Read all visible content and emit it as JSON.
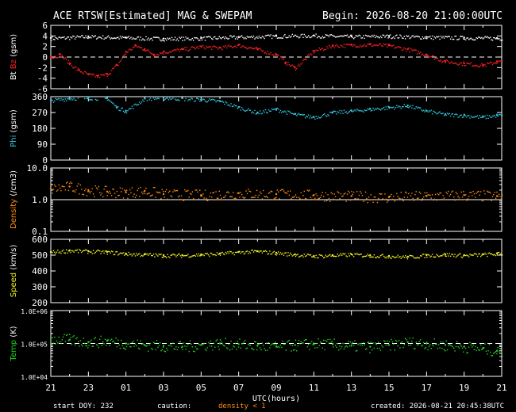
{
  "header": {
    "title": "ACE RTSW[Estimated] MAG & SWEPAM",
    "begin": "Begin: 2026-08-20 21:00:00UTC"
  },
  "footer": {
    "start_doy": "start DOY: 232",
    "caution": "caution:",
    "density_note": "density < 1",
    "created": "created: 2026-08-21 20:45:38UTC"
  },
  "colors": {
    "bt": "#ffffff",
    "bz": "#ff2020",
    "phi": "#30c8e0",
    "density": "#ff8c10",
    "speed": "#f0f020",
    "temp": "#20d820",
    "caution": "#ff8c10"
  },
  "chart_data": [
    {
      "type": "scatter",
      "panel": "mag",
      "ylabel_parts": [
        "Bt",
        "Bz",
        "(gsm)"
      ],
      "yticks": [
        "6",
        "4",
        "2",
        "0",
        "-2",
        "-4",
        "-6"
      ],
      "ylim": [
        -6,
        6
      ],
      "reference_line": 0,
      "series": [
        {
          "name": "Bt",
          "x": [
            0,
            2,
            4,
            6,
            8,
            10,
            12,
            14,
            16,
            18,
            20,
            22,
            23.75
          ],
          "values": [
            3.6,
            3.9,
            3.7,
            3.5,
            3.6,
            3.8,
            4.0,
            4.1,
            3.9,
            4.0,
            3.8,
            3.7,
            3.6
          ]
        },
        {
          "name": "Bz",
          "x": [
            0,
            0.5,
            1,
            1.5,
            2,
            2.5,
            3,
            3.5,
            4,
            4.5,
            5,
            5.5,
            6,
            7,
            8,
            9,
            10,
            11,
            12,
            12.5,
            13,
            14,
            15,
            16,
            17,
            18,
            19,
            20,
            21,
            22,
            23,
            23.75
          ],
          "values": [
            0,
            0.5,
            -1.2,
            -2.5,
            -3.3,
            -3.6,
            -3.2,
            -1.5,
            1.0,
            2.2,
            1.5,
            0.5,
            1.0,
            1.5,
            2.0,
            1.8,
            2.3,
            1.5,
            0.5,
            -1.0,
            -2.0,
            1.2,
            2.2,
            2.3,
            2.4,
            2.2,
            1.5,
            0.5,
            -0.8,
            -1.2,
            -1.5,
            -0.8
          ]
        }
      ]
    },
    {
      "type": "scatter",
      "panel": "phi",
      "ylabel_parts": [
        "Phi",
        "(gsm)"
      ],
      "yticks": [
        "360",
        "270",
        "180",
        "90",
        "0"
      ],
      "ylim": [
        0,
        360
      ],
      "series": [
        {
          "name": "Phi",
          "x": [
            0,
            1,
            2,
            3,
            3.5,
            4,
            5,
            6,
            8,
            9,
            10,
            11,
            12,
            13,
            14,
            15,
            16,
            17,
            18,
            19,
            20,
            21,
            22,
            23,
            23.75
          ],
          "values": [
            340,
            352,
            355,
            352,
            300,
            280,
            350,
            355,
            345,
            335,
            300,
            270,
            290,
            260,
            245,
            270,
            280,
            290,
            300,
            310,
            280,
            260,
            255,
            245,
            255
          ]
        }
      ]
    },
    {
      "type": "scatter",
      "panel": "density",
      "ylabel_parts": [
        "Density",
        "(/cm3)"
      ],
      "yticks": [
        "10.0",
        "1.0",
        "0.1"
      ],
      "ylim": [
        0.1,
        10
      ],
      "scale": "log",
      "reference_line": 1,
      "series": [
        {
          "name": "Density",
          "x": [
            0,
            1,
            2,
            3,
            4,
            5,
            6,
            8,
            10,
            12,
            14,
            16,
            18,
            20,
            22,
            23.75
          ],
          "values": [
            2.2,
            2.6,
            2.0,
            1.8,
            1.7,
            1.9,
            1.5,
            1.4,
            1.6,
            1.5,
            1.4,
            1.3,
            1.2,
            1.3,
            1.4,
            1.3
          ]
        }
      ]
    },
    {
      "type": "scatter",
      "panel": "speed",
      "ylabel_parts": [
        "Speed",
        "(km/s)"
      ],
      "yticks": [
        "600",
        "500",
        "400",
        "300",
        "200"
      ],
      "ylim": [
        200,
        600
      ],
      "series": [
        {
          "name": "Speed",
          "x": [
            0,
            1,
            2,
            3,
            4,
            5,
            6,
            7,
            8,
            9,
            10,
            11,
            12,
            13,
            14,
            15,
            16,
            17,
            18,
            19,
            20,
            21,
            22,
            23,
            23.75
          ],
          "values": [
            520,
            530,
            525,
            520,
            510,
            505,
            500,
            500,
            505,
            510,
            520,
            525,
            515,
            505,
            495,
            500,
            505,
            500,
            495,
            490,
            500,
            505,
            500,
            505,
            510
          ]
        }
      ]
    },
    {
      "type": "scatter",
      "panel": "temp",
      "ylabel_parts": [
        "Temp",
        "(K)"
      ],
      "yticks": [
        "1.0E+06",
        "1.0E+05",
        "1.0E+04"
      ],
      "ylim": [
        10000,
        1000000
      ],
      "scale": "log",
      "reference_line": 100000,
      "series": [
        {
          "name": "Temp",
          "x": [
            0,
            1,
            2,
            3,
            4,
            5,
            6,
            7,
            8,
            9,
            10,
            11,
            12,
            13,
            14,
            15,
            16,
            17,
            18,
            19,
            20,
            21,
            22,
            23,
            23.75
          ],
          "values": [
            140000,
            130000,
            110000,
            120000,
            100000,
            90000,
            85000,
            80000,
            90000,
            100000,
            95000,
            85000,
            80000,
            90000,
            100000,
            95000,
            85000,
            80000,
            90000,
            110000,
            100000,
            90000,
            80000,
            70000,
            60000
          ]
        }
      ]
    }
  ],
  "xaxis": {
    "label": "UTC(hours)",
    "xlim": [
      0,
      24
    ],
    "major_labels": [
      "21",
      "23",
      "01",
      "03",
      "05",
      "07",
      "09",
      "11",
      "13",
      "15",
      "17",
      "19",
      "21"
    ]
  }
}
